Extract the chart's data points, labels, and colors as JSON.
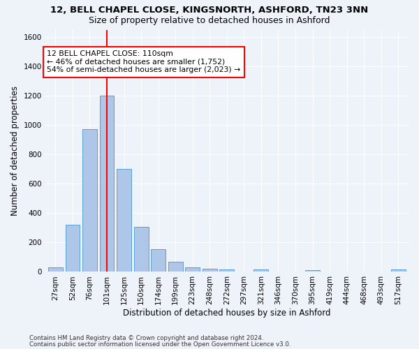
{
  "title_line1": "12, BELL CHAPEL CLOSE, KINGSNORTH, ASHFORD, TN23 3NN",
  "title_line2": "Size of property relative to detached houses in Ashford",
  "xlabel": "Distribution of detached houses by size in Ashford",
  "ylabel": "Number of detached properties",
  "footer_line1": "Contains HM Land Registry data © Crown copyright and database right 2024.",
  "footer_line2": "Contains public sector information licensed under the Open Government Licence v3.0.",
  "bar_labels": [
    "27sqm",
    "52sqm",
    "76sqm",
    "101sqm",
    "125sqm",
    "150sqm",
    "174sqm",
    "199sqm",
    "223sqm",
    "248sqm",
    "272sqm",
    "297sqm",
    "321sqm",
    "346sqm",
    "370sqm",
    "395sqm",
    "419sqm",
    "444sqm",
    "468sqm",
    "493sqm",
    "517sqm"
  ],
  "bar_values": [
    30,
    320,
    970,
    1200,
    700,
    305,
    155,
    70,
    30,
    20,
    15,
    0,
    15,
    0,
    0,
    10,
    0,
    0,
    0,
    0,
    15
  ],
  "bar_color": "#aec6e8",
  "bar_edgecolor": "#5a9fd4",
  "vline_x": 3,
  "annotation_text": "12 BELL CHAPEL CLOSE: 110sqm\n← 46% of detached houses are smaller (1,752)\n54% of semi-detached houses are larger (2,023) →",
  "annotation_box_color": "white",
  "annotation_box_edgecolor": "red",
  "vline_color": "red",
  "ylim": [
    0,
    1650
  ],
  "background_color": "#eef2f9",
  "grid_color": "white",
  "title_fontsize": 9.5,
  "subtitle_fontsize": 9,
  "axis_label_fontsize": 8.5,
  "tick_fontsize": 7.5,
  "footer_fontsize": 6.2
}
